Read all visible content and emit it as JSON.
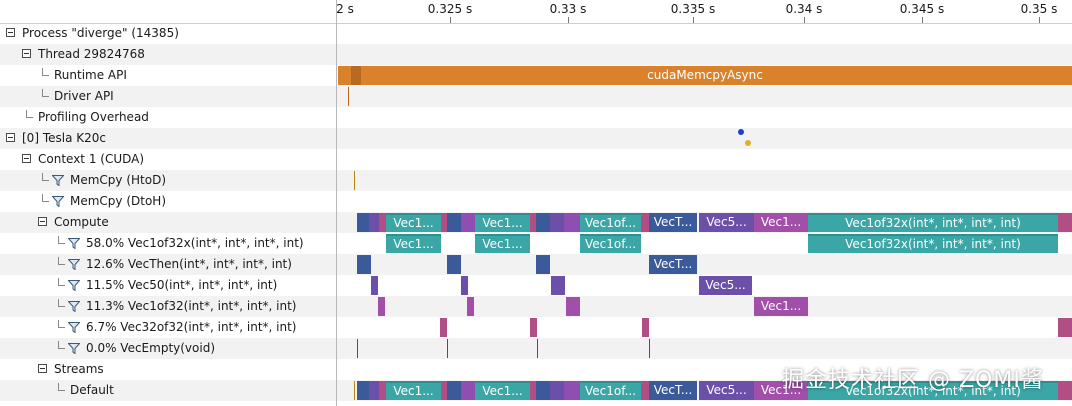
{
  "ruler": {
    "ticks": [
      "2 s",
      "0.325 s",
      "0.33 s",
      "0.335 s",
      "0.34 s",
      "0.345 s",
      "0.35 s"
    ]
  },
  "tree": {
    "process": "Process \"diverge\" (14385)",
    "thread": "Thread 29824768",
    "runtime_api": "Runtime API",
    "driver_api": "Driver API",
    "profiling_overhead": "Profiling Overhead",
    "device": "[0] Tesla K20c",
    "context": "Context 1 (CUDA)",
    "memcpy_htod": "MemCpy (HtoD)",
    "memcpy_dtoh": "MemCpy (DtoH)",
    "compute": "Compute",
    "k1": "58.0% Vec1of32x(int*, int*, int*, int)",
    "k2": "12.6% VecThen(int*, int*, int*, int)",
    "k3": "11.5% Vec50(int*, int*, int*, int)",
    "k4": "11.3% Vec1of32(int*, int*, int*, int)",
    "k5": "6.7% Vec32of32(int*, int*, int*, int)",
    "k6": "0.0% VecEmpty(void)",
    "streams": "Streams",
    "default": "Default"
  },
  "timeline": {
    "runtime_call": "cudaMemcpyAsync",
    "bar_vec1": "Vec1...",
    "bar_vec1of": "Vec1of...",
    "bar_vect": "VecT...",
    "bar_vec5": "Vec5...",
    "bar_vec1of32x": "Vec1of32x(int*, int*, int*, int)"
  },
  "colors": {
    "runtime": "#d9822b",
    "teal": "#3aa6a6",
    "blue": "#3b5a99",
    "purple": "#6b4fa8",
    "pink": "#b14e84"
  },
  "watermark": "掘金技术社区 @ ZOMI酱"
}
